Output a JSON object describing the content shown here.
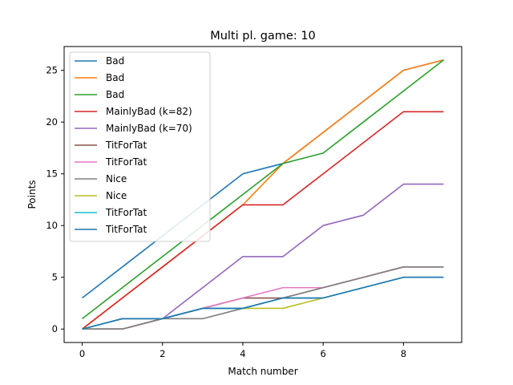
{
  "chart_data": {
    "type": "line",
    "title": "Multi pl. game: 10",
    "xlabel": "Match number",
    "ylabel": "Points",
    "xlim": [
      -0.45,
      9.45
    ],
    "ylim": [
      -1.3,
      27.3
    ],
    "xticks": [
      0,
      2,
      4,
      6,
      8
    ],
    "yticks": [
      0,
      5,
      10,
      15,
      20,
      25
    ],
    "grid": false,
    "legend_position": "top-left",
    "x": [
      0,
      1,
      2,
      3,
      4,
      5,
      6,
      7,
      8,
      9
    ],
    "series": [
      {
        "name": "Bad",
        "color": "#1f77b4",
        "values": [
          3,
          6,
          9,
          12,
          15,
          16,
          19,
          22,
          25,
          26
        ]
      },
      {
        "name": "Bad",
        "color": "#ff7f0e",
        "values": [
          0,
          3,
          6,
          9,
          12,
          16,
          19,
          22,
          25,
          26
        ]
      },
      {
        "name": "Bad",
        "color": "#2ca02c",
        "values": [
          1,
          4,
          7,
          10,
          13,
          16,
          17,
          20,
          23,
          26
        ]
      },
      {
        "name": "MainlyBad (k=82)",
        "color": "#d62728",
        "values": [
          0,
          3,
          6,
          9,
          12,
          12,
          15,
          18,
          21,
          21
        ]
      },
      {
        "name": "MainlyBad (k=70)",
        "color": "#9467bd",
        "values": [
          0,
          0,
          1,
          4,
          7,
          7,
          10,
          11,
          14,
          14
        ]
      },
      {
        "name": "TitForTat",
        "color": "#8c564b",
        "values": [
          0,
          0,
          1,
          2,
          3,
          3,
          4,
          5,
          6,
          6
        ]
      },
      {
        "name": "TitForTat",
        "color": "#e377c2",
        "values": [
          0,
          1,
          1,
          2,
          3,
          4,
          4,
          5,
          6,
          6
        ]
      },
      {
        "name": "Nice",
        "color": "#7f7f7f",
        "values": [
          0,
          0,
          1,
          1,
          2,
          3,
          4,
          5,
          6,
          6
        ]
      },
      {
        "name": "Nice",
        "color": "#bcbd22",
        "values": [
          0,
          1,
          1,
          2,
          2,
          2,
          3,
          4,
          5,
          5
        ]
      },
      {
        "name": "TitForTat",
        "color": "#17becf",
        "values": [
          0,
          1,
          1,
          2,
          2,
          3,
          3,
          4,
          5,
          5
        ]
      },
      {
        "name": "TitForTat",
        "color": "#1f77b4",
        "values": [
          0,
          1,
          1,
          2,
          2,
          3,
          3,
          4,
          5,
          5
        ]
      }
    ]
  }
}
